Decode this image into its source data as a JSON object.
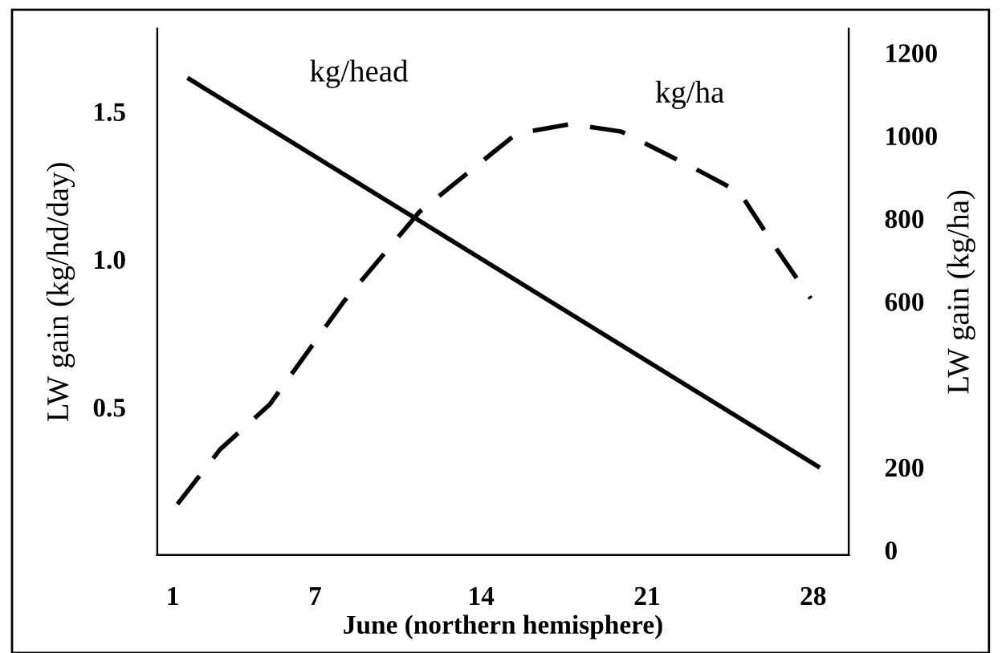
{
  "chart_data": {
    "type": "line",
    "xlabel": "June (northern hemisphere)",
    "ylabel": "LW gain (kg/hd/day)",
    "y2label": "LW gain (kg/ha)",
    "xlim": [
      0.35,
      29.5
    ],
    "xticks": [
      1,
      7,
      14,
      21,
      28
    ],
    "ylim": [
      0,
      1.78
    ],
    "yticks": [
      0.5,
      {
        "value": 1,
        "label": "1.0"
      },
      1.5
    ],
    "y2lim": [
      -12,
      1258
    ],
    "y2ticks": [
      0,
      200,
      600,
      800,
      1000,
      1200
    ],
    "grid": false,
    "legend": false,
    "series": [
      {
        "name": "kg/head",
        "color": "#000000",
        "line_style": "solid",
        "x": [
          1.7,
          28.2
        ],
        "values": [
          1.61,
          0.3
        ]
      },
      {
        "name": "kg/ha",
        "color": "#000000",
        "line_style": "dashed",
        "axis": "y2",
        "x": [
          1.2,
          3,
          5.1,
          8.2,
          11.4,
          14.5,
          15.5,
          17.8,
          19.9,
          21,
          23.4,
          24.9,
          26.5,
          27.9
        ],
        "values": [
          111,
          243,
          352,
          599,
          816,
          959,
          1005,
          1028,
          1010,
          979,
          909,
          863,
          723,
          607
        ]
      }
    ]
  }
}
